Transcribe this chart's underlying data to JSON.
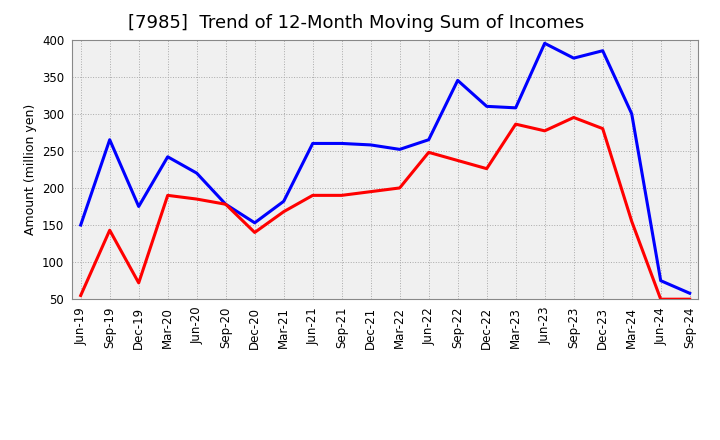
{
  "title": "[7985]  Trend of 12-Month Moving Sum of Incomes",
  "ylabel": "Amount (million yen)",
  "x_labels": [
    "Jun-19",
    "Sep-19",
    "Dec-19",
    "Mar-20",
    "Jun-20",
    "Sep-20",
    "Dec-20",
    "Mar-21",
    "Jun-21",
    "Sep-21",
    "Dec-21",
    "Mar-22",
    "Jun-22",
    "Sep-22",
    "Dec-22",
    "Mar-23",
    "Jun-23",
    "Sep-23",
    "Dec-23",
    "Mar-24",
    "Jun-24",
    "Sep-24"
  ],
  "ordinary_income": [
    150,
    265,
    175,
    242,
    220,
    178,
    153,
    182,
    260,
    260,
    258,
    252,
    265,
    345,
    310,
    308,
    395,
    375,
    385,
    300,
    75,
    58
  ],
  "net_income": [
    55,
    143,
    72,
    190,
    185,
    178,
    140,
    168,
    190,
    190,
    195,
    200,
    248,
    237,
    226,
    286,
    277,
    295,
    280,
    155,
    50,
    50
  ],
  "ordinary_color": "#0000FF",
  "net_color": "#FF0000",
  "ylim": [
    50,
    400
  ],
  "yticks": [
    50,
    100,
    150,
    200,
    250,
    300,
    350,
    400
  ],
  "bg_color": "#FFFFFF",
  "plot_bg_color": "#F0F0F0",
  "grid_color": "#AAAAAA",
  "title_fontsize": 13,
  "axis_label_fontsize": 9,
  "tick_fontsize": 8.5,
  "legend_fontsize": 10,
  "line_width": 2.2
}
